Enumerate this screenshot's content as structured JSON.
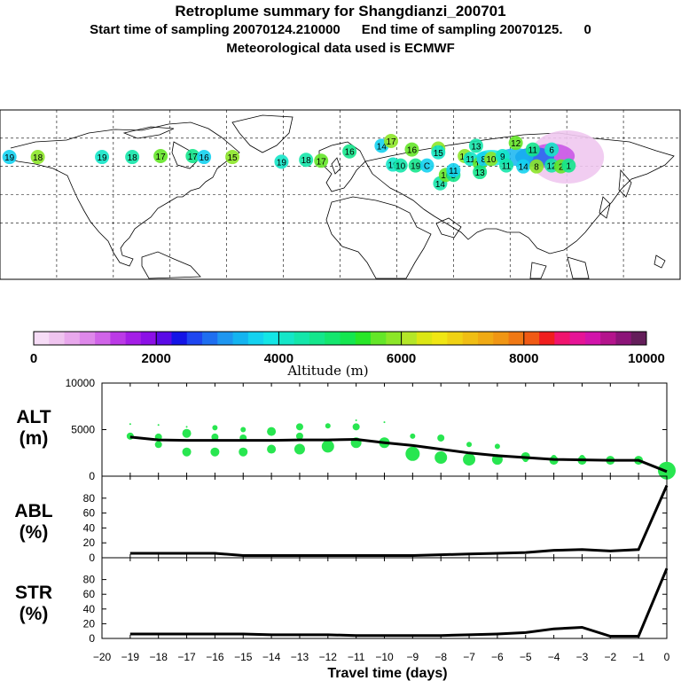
{
  "header": {
    "title": "Retroplume summary for Shangdianzi_200701",
    "start_label": "Start time of sampling 20070124.210000",
    "end_label": "End time of sampling 20070125.",
    "end_suffix": "0",
    "met_label": "Meteorological data used is ECMWF"
  },
  "colorbar": {
    "ticks": [
      "0",
      "2000",
      "4000",
      "6000",
      "8000",
      "10000"
    ],
    "label": "Altitude (m)",
    "colors": [
      "#f6dcf6",
      "#efc4ef",
      "#e8a8ec",
      "#de88ea",
      "#d064e8",
      "#bb3ae6",
      "#a41ee6",
      "#8c10e6",
      "#5a0ae6",
      "#1414e6",
      "#1e46f0",
      "#1e6ef0",
      "#1e96f0",
      "#14b4f0",
      "#14d2f0",
      "#14e6e6",
      "#14e6c8",
      "#14e6aa",
      "#14e68c",
      "#14e66e",
      "#14e650",
      "#28e628",
      "#64e628",
      "#8ce628",
      "#b4e628",
      "#dce614",
      "#f0e614",
      "#f0d214",
      "#f0be14",
      "#f0aa14",
      "#f09614",
      "#f07814",
      "#f05a14",
      "#f01e1e",
      "#f0146e",
      "#e61496",
      "#d214aa",
      "#b4148c",
      "#8c1478",
      "#641e5a"
    ]
  },
  "map_labels": [
    {
      "lon": -126,
      "lat": 40,
      "text": "19"
    },
    {
      "lon": -110,
      "lat": 40,
      "text": "18"
    },
    {
      "lon": -95,
      "lat": 41,
      "text": "17"
    },
    {
      "lon": -78,
      "lat": 41,
      "text": "17"
    },
    {
      "lon": -72,
      "lat": 40,
      "text": "16"
    },
    {
      "lon": -57,
      "lat": 40,
      "text": "15"
    },
    {
      "lon": -31,
      "lat": 35,
      "text": "19"
    },
    {
      "lon": -18,
      "lat": 37,
      "text": "18"
    },
    {
      "lon": -10,
      "lat": 36,
      "text": "17"
    },
    {
      "lon": 5,
      "lat": 46,
      "text": "16"
    },
    {
      "lon": 22,
      "lat": 52,
      "text": "14"
    },
    {
      "lon": 27,
      "lat": 57,
      "text": "17"
    },
    {
      "lon": 28,
      "lat": 32,
      "text": "19"
    },
    {
      "lon": 32,
      "lat": 31,
      "text": "10"
    },
    {
      "lon": 38,
      "lat": 48,
      "text": "16"
    },
    {
      "lon": 40,
      "lat": 31,
      "text": "19"
    },
    {
      "lon": 46,
      "lat": 31,
      "text": "C"
    },
    {
      "lon": 52,
      "lat": 49,
      "text": "12"
    },
    {
      "lon": 52,
      "lat": 45,
      "text": "15"
    },
    {
      "lon": 53,
      "lat": 12,
      "text": "14"
    },
    {
      "lon": 56,
      "lat": 21,
      "text": "16"
    },
    {
      "lon": 60,
      "lat": 21,
      "text": "5"
    },
    {
      "lon": 60,
      "lat": 26,
      "text": "11"
    },
    {
      "lon": 66,
      "lat": 41,
      "text": "15"
    },
    {
      "lon": 69,
      "lat": 38,
      "text": "11"
    },
    {
      "lon": 72,
      "lat": 52,
      "text": "13"
    },
    {
      "lon": 74,
      "lat": 33,
      "text": "12"
    },
    {
      "lon": 74,
      "lat": 24,
      "text": "13"
    },
    {
      "lon": 76,
      "lat": 38,
      "text": "8"
    },
    {
      "lon": 80,
      "lat": 38,
      "text": "10"
    },
    {
      "lon": 86,
      "lat": 41,
      "text": "9"
    },
    {
      "lon": 88,
      "lat": 31,
      "text": "11"
    },
    {
      "lon": 93,
      "lat": 55,
      "text": "12"
    },
    {
      "lon": 102,
      "lat": 48,
      "text": "11"
    },
    {
      "lon": 97,
      "lat": 30,
      "text": "14"
    },
    {
      "lon": 104,
      "lat": 30,
      "text": "8"
    },
    {
      "lon": 112,
      "lat": 48,
      "text": "6"
    },
    {
      "lon": 112,
      "lat": 31,
      "text": "12"
    },
    {
      "lon": 117,
      "lat": 30,
      "text": "2"
    },
    {
      "lon": 121,
      "lat": 31,
      "text": "1"
    },
    {
      "lon": -175,
      "lat": 40,
      "text": "19"
    },
    {
      "lon": -160,
      "lat": 40,
      "text": "18"
    }
  ],
  "chart_data": [
    {
      "type": "scatter+line",
      "panel": "ALT",
      "ylabel": "ALT\n(m)",
      "ylabel_line1": "ALT",
      "ylabel_line2": "(m)",
      "ylim": [
        0,
        10000
      ],
      "yticks": [
        "0",
        "5000",
        "10000"
      ],
      "x": [
        -19,
        -18,
        -17,
        -16,
        -15,
        -14,
        -13,
        -12,
        -11,
        -10,
        -9,
        -8,
        -7,
        -6,
        -5,
        -4,
        -3,
        -2,
        -1,
        0
      ],
      "values": [
        4200,
        3900,
        3850,
        3850,
        3850,
        3850,
        3900,
        3900,
        3950,
        3600,
        3300,
        2900,
        2500,
        2200,
        2000,
        1800,
        1750,
        1700,
        1700,
        500
      ],
      "points": [
        {
          "x": -19,
          "y": 4300,
          "s": 4
        },
        {
          "x": -19,
          "y": 5600,
          "s": 1
        },
        {
          "x": -18,
          "y": 4200,
          "s": 4
        },
        {
          "x": -18,
          "y": 3400,
          "s": 4
        },
        {
          "x": -18,
          "y": 5500,
          "s": 1
        },
        {
          "x": -17,
          "y": 4600,
          "s": 5
        },
        {
          "x": -17,
          "y": 2600,
          "s": 5
        },
        {
          "x": -17,
          "y": 5300,
          "s": 1
        },
        {
          "x": -16,
          "y": 5200,
          "s": 3
        },
        {
          "x": -16,
          "y": 4200,
          "s": 4
        },
        {
          "x": -16,
          "y": 2600,
          "s": 5
        },
        {
          "x": -15,
          "y": 5000,
          "s": 3
        },
        {
          "x": -15,
          "y": 4100,
          "s": 4
        },
        {
          "x": -15,
          "y": 2600,
          "s": 5
        },
        {
          "x": -14,
          "y": 4800,
          "s": 5
        },
        {
          "x": -14,
          "y": 2900,
          "s": 5
        },
        {
          "x": -13,
          "y": 5300,
          "s": 4
        },
        {
          "x": -13,
          "y": 4300,
          "s": 4
        },
        {
          "x": -13,
          "y": 2900,
          "s": 6
        },
        {
          "x": -12,
          "y": 5400,
          "s": 3
        },
        {
          "x": -12,
          "y": 3200,
          "s": 7
        },
        {
          "x": -11,
          "y": 5300,
          "s": 4
        },
        {
          "x": -11,
          "y": 3600,
          "s": 6
        },
        {
          "x": -11,
          "y": 6000,
          "s": 1
        },
        {
          "x": -10,
          "y": 3600,
          "s": 6
        },
        {
          "x": -10,
          "y": 5800,
          "s": 1
        },
        {
          "x": -9,
          "y": 4300,
          "s": 3
        },
        {
          "x": -9,
          "y": 2400,
          "s": 8
        },
        {
          "x": -8,
          "y": 4100,
          "s": 4
        },
        {
          "x": -8,
          "y": 2000,
          "s": 7
        },
        {
          "x": -7,
          "y": 3400,
          "s": 3
        },
        {
          "x": -7,
          "y": 1800,
          "s": 7
        },
        {
          "x": -6,
          "y": 3200,
          "s": 3
        },
        {
          "x": -6,
          "y": 1800,
          "s": 6
        },
        {
          "x": -5,
          "y": 2100,
          "s": 5
        },
        {
          "x": -5,
          "y": 1800,
          "s": 3
        },
        {
          "x": -4,
          "y": 2000,
          "s": 3
        },
        {
          "x": -4,
          "y": 1700,
          "s": 5
        },
        {
          "x": -3,
          "y": 2000,
          "s": 3
        },
        {
          "x": -3,
          "y": 1700,
          "s": 5
        },
        {
          "x": -2,
          "y": 1700,
          "s": 5
        },
        {
          "x": -1,
          "y": 1700,
          "s": 5
        },
        {
          "x": 0,
          "y": 600,
          "s": 10
        }
      ]
    },
    {
      "type": "line",
      "panel": "ABL",
      "ylabel_line1": "ABL",
      "ylabel_line2": "(%)",
      "ylim": [
        0,
        100
      ],
      "yticks": [
        "0",
        "20",
        "40",
        "60",
        "80"
      ],
      "x": [
        -19,
        -18,
        -17,
        -16,
        -15,
        -14,
        -13,
        -12,
        -11,
        -10,
        -9,
        -8,
        -7,
        -6,
        -5,
        -4,
        -3,
        -2,
        -1,
        0
      ],
      "values": [
        6,
        6,
        6,
        6,
        3,
        3,
        3,
        3,
        3,
        3,
        3,
        4,
        5,
        6,
        7,
        10,
        11,
        9,
        11,
        97
      ]
    },
    {
      "type": "line",
      "panel": "STR",
      "ylabel_line1": "STR",
      "ylabel_line2": "(%)",
      "ylim": [
        0,
        100
      ],
      "yticks": [
        "0",
        "20",
        "40",
        "60",
        "80"
      ],
      "x": [
        -19,
        -18,
        -17,
        -16,
        -15,
        -14,
        -13,
        -12,
        -11,
        -10,
        -9,
        -8,
        -7,
        -6,
        -5,
        -4,
        -3,
        -2,
        -1,
        0
      ],
      "values": [
        6,
        6,
        6,
        6,
        6,
        5,
        5,
        5,
        4,
        4,
        4,
        4,
        5,
        6,
        8,
        13,
        15,
        3,
        3,
        95
      ]
    }
  ],
  "xaxis": {
    "ticks": [
      "−20",
      "−19",
      "−18",
      "−17",
      "−16",
      "−15",
      "−14",
      "−13",
      "−12",
      "−11",
      "−10",
      "−9",
      "−8",
      "−7",
      "−6",
      "−5",
      "−4",
      "−3",
      "−2",
      "−1",
      "0"
    ],
    "label": "Travel time (days)"
  },
  "colors": {
    "dot": "#28e650",
    "line": "#000000"
  }
}
